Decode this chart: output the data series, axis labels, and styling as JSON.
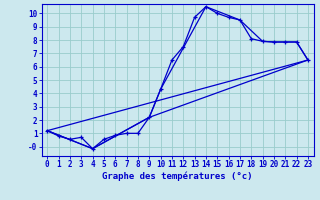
{
  "title": "Graphe des températures (°c)",
  "background_color": "#cce8ee",
  "grid_color": "#99cccc",
  "line_color": "#0000cc",
  "x_ticks": [
    0,
    1,
    2,
    3,
    4,
    5,
    6,
    7,
    8,
    9,
    10,
    11,
    12,
    13,
    14,
    15,
    16,
    17,
    18,
    19,
    20,
    21,
    22,
    23
  ],
  "y_ticks": [
    0,
    1,
    2,
    3,
    4,
    5,
    6,
    7,
    8,
    9,
    10
  ],
  "y_labels": [
    "-0",
    "1",
    "2",
    "3",
    "4",
    "5",
    "6",
    "7",
    "8",
    "9",
    "10"
  ],
  "ylim": [
    -0.7,
    10.7
  ],
  "xlim": [
    -0.5,
    23.5
  ],
  "curve1_x": [
    0,
    1,
    2,
    3,
    4,
    5,
    6,
    7,
    8,
    9,
    10,
    11,
    12,
    13,
    14,
    15,
    16,
    17,
    18,
    19,
    20,
    21,
    22,
    23
  ],
  "curve1_y": [
    1.2,
    0.8,
    0.55,
    0.7,
    -0.15,
    0.55,
    0.85,
    1.0,
    1.0,
    2.2,
    4.3,
    6.5,
    7.5,
    9.7,
    10.5,
    10.0,
    9.7,
    9.5,
    8.1,
    7.9,
    7.85,
    7.85,
    7.85,
    6.5
  ],
  "curve2_x": [
    0,
    4,
    9,
    10,
    14,
    17,
    19,
    20,
    21,
    22,
    23
  ],
  "curve2_y": [
    1.2,
    -0.15,
    2.2,
    4.3,
    10.5,
    9.5,
    7.9,
    7.85,
    7.85,
    7.85,
    6.5
  ],
  "curve3_x": [
    0,
    23
  ],
  "curve3_y": [
    1.2,
    6.5
  ],
  "curve4_x": [
    0,
    4,
    9,
    23
  ],
  "curve4_y": [
    1.2,
    -0.15,
    2.2,
    6.5
  ],
  "xlabel_fontsize": 6.5,
  "tick_fontsize": 5.5
}
